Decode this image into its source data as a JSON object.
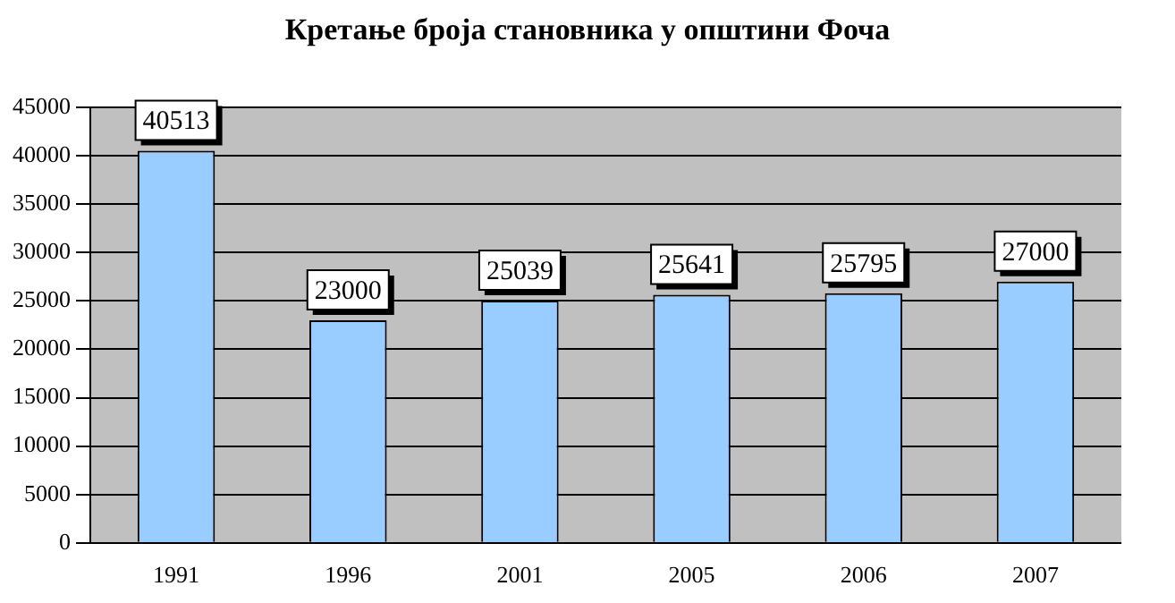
{
  "chart_data": {
    "type": "bar",
    "title": "Кретање броја становника у општини Фоча",
    "categories": [
      "1991",
      "1996",
      "2001",
      "2005",
      "2006",
      "2007"
    ],
    "values": [
      40513,
      23000,
      25039,
      25641,
      25795,
      27000
    ],
    "color": "#99ccff",
    "ylim": [
      0,
      45000
    ],
    "yticks": [
      0,
      5000,
      10000,
      15000,
      20000,
      25000,
      30000,
      35000,
      40000,
      45000
    ],
    "grid": "y",
    "data_labels": true,
    "legend": false
  }
}
